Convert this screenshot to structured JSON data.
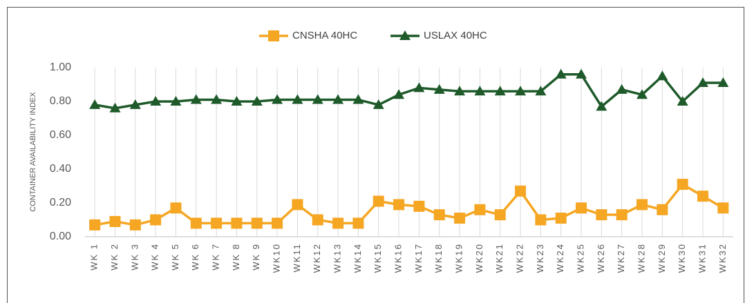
{
  "chart_data": {
    "type": "line",
    "ylabel": "CONTAINER AVAILABILITY INDEX",
    "categories": [
      "WK 1",
      "WK 2",
      "WK 3",
      "WK 4",
      "WK 5",
      "WK 6",
      "WK 7",
      "WK 8",
      "WK 9",
      "WK10",
      "WK11",
      "WK12",
      "WK13",
      "WK14",
      "WK15",
      "WK16",
      "WK17",
      "WK18",
      "WK19",
      "WK20",
      "WK21",
      "WK22",
      "WK23",
      "WK24",
      "WK25",
      "WK26",
      "WK27",
      "WK28",
      "WK29",
      "WK30",
      "WK31",
      "WK32"
    ],
    "series": [
      {
        "name": "CNSHA 40HC",
        "color": "#f5a623",
        "marker": "square",
        "values": [
          0.07,
          0.09,
          0.07,
          0.1,
          0.17,
          0.08,
          0.08,
          0.08,
          0.08,
          0.08,
          0.19,
          0.1,
          0.08,
          0.08,
          0.21,
          0.19,
          0.18,
          0.13,
          0.11,
          0.16,
          0.13,
          0.27,
          0.1,
          0.11,
          0.17,
          0.13,
          0.13,
          0.19,
          0.16,
          0.31,
          0.24,
          0.17
        ]
      },
      {
        "name": "USLAX 40HC",
        "color": "#1e5a2a",
        "marker": "triangle",
        "values": [
          0.78,
          0.76,
          0.78,
          0.8,
          0.8,
          0.81,
          0.81,
          0.8,
          0.8,
          0.81,
          0.81,
          0.81,
          0.81,
          0.81,
          0.78,
          0.84,
          0.88,
          0.87,
          0.86,
          0.86,
          0.86,
          0.86,
          0.86,
          0.96,
          0.96,
          0.77,
          0.87,
          0.84,
          0.95,
          0.8,
          0.91,
          0.91
        ]
      }
    ],
    "ylim": [
      0,
      1
    ],
    "yticks": [
      {
        "value": 0,
        "label": "0.00"
      },
      {
        "value": 0.2,
        "label": "0.20"
      },
      {
        "value": 0.4,
        "label": "0.40"
      },
      {
        "value": 0.6,
        "label": "0.60"
      },
      {
        "value": 0.8,
        "label": "0.80"
      },
      {
        "value": 1,
        "label": "1.00"
      }
    ],
    "grid": true,
    "legend": "top"
  }
}
